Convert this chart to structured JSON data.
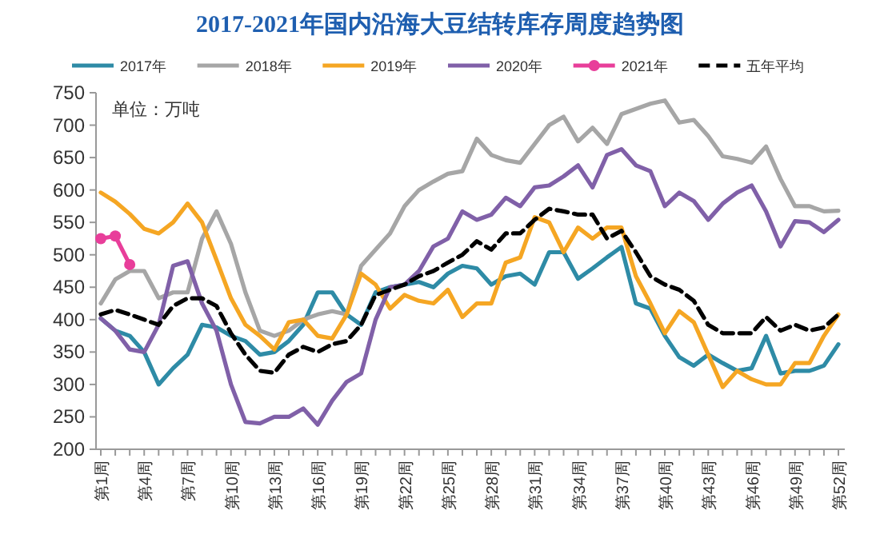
{
  "chart_data": {
    "type": "line",
    "title": "2017-2021年国内沿海大豆结转库存周度趋势图",
    "annotations": [
      "单位：万吨"
    ],
    "categories": [
      "第1周",
      null,
      null,
      "第4周",
      null,
      null,
      "第7周",
      null,
      null,
      "第10周",
      null,
      null,
      "第13周",
      null,
      null,
      "第16周",
      null,
      null,
      "第19周",
      null,
      null,
      "第22周",
      null,
      null,
      "第25周",
      null,
      null,
      "第28周",
      null,
      null,
      "第31周",
      null,
      null,
      "第34周",
      null,
      null,
      "第37周",
      null,
      null,
      "第40周",
      null,
      null,
      "第43周",
      null,
      null,
      "第46周",
      null,
      null,
      "第49周",
      null,
      null,
      "第52周"
    ],
    "ylim": [
      200,
      750
    ],
    "yticks": [
      200,
      250,
      300,
      350,
      400,
      450,
      500,
      550,
      600,
      650,
      700,
      750
    ],
    "grid": false,
    "legend": "top",
    "marker": "none",
    "line_style": "solid",
    "series": [
      {
        "name": "2017年",
        "color": "#2e8ba6",
        "values": [
          402,
          383,
          375,
          350,
          300,
          325,
          346,
          392,
          388,
          375,
          367,
          346,
          350,
          367,
          392,
          442,
          442,
          408,
          392,
          442,
          450,
          454,
          458,
          450,
          471,
          483,
          479,
          454,
          467,
          471,
          454,
          504,
          504,
          463,
          479,
          496,
          512,
          425,
          417,
          375,
          342,
          329,
          346,
          333,
          321,
          325,
          375,
          317,
          321,
          321,
          329,
          362
        ]
      },
      {
        "name": "2018年",
        "color": "#a6a6a6",
        "values": [
          425,
          462,
          475,
          475,
          433,
          442,
          442,
          525,
          567,
          517,
          442,
          383,
          375,
          383,
          400,
          408,
          413,
          408,
          483,
          508,
          533,
          575,
          600,
          613,
          625,
          629,
          679,
          654,
          646,
          642,
          671,
          700,
          713,
          675,
          696,
          671,
          717,
          725,
          733,
          738,
          704,
          708,
          683,
          652,
          648,
          642,
          667,
          617,
          575,
          575,
          567,
          568
        ]
      },
      {
        "name": "2019年",
        "color": "#f5a623",
        "values": [
          596,
          582,
          563,
          540,
          533,
          550,
          579,
          550,
          492,
          433,
          392,
          375,
          354,
          396,
          400,
          375,
          371,
          408,
          471,
          454,
          417,
          438,
          429,
          425,
          446,
          404,
          425,
          425,
          488,
          496,
          558,
          550,
          504,
          542,
          525,
          542,
          542,
          467,
          425,
          379,
          413,
          396,
          346,
          296,
          321,
          308,
          300,
          300,
          333,
          333,
          375,
          408
        ]
      },
      {
        "name": "2020年",
        "color": "#8060a8",
        "values": [
          402,
          383,
          354,
          350,
          392,
          483,
          490,
          425,
          383,
          300,
          242,
          240,
          250,
          250,
          263,
          238,
          275,
          304,
          317,
          400,
          450,
          454,
          475,
          513,
          525,
          567,
          554,
          562,
          588,
          575,
          604,
          607,
          621,
          638,
          604,
          654,
          663,
          638,
          629,
          575,
          596,
          583,
          554,
          579,
          596,
          607,
          567,
          513,
          552,
          550,
          535,
          554
        ]
      },
      {
        "name": "2021年",
        "color": "#e83e9a",
        "marker": "circle",
        "values": [
          525,
          529,
          485,
          null,
          null,
          null,
          null,
          null,
          null,
          null,
          null,
          null,
          null,
          null,
          null,
          null,
          null,
          null,
          null,
          null,
          null,
          null,
          null,
          null,
          null,
          null,
          null,
          null,
          null,
          null,
          null,
          null,
          null,
          null,
          null,
          null,
          null,
          null,
          null,
          null,
          null,
          null,
          null,
          null,
          null,
          null,
          null,
          null,
          null,
          null,
          null,
          null
        ]
      },
      {
        "name": "五年平均",
        "color": "#000000",
        "line_style": "dashed",
        "values": [
          408,
          415,
          408,
          400,
          392,
          421,
          433,
          433,
          421,
          379,
          346,
          321,
          318,
          346,
          358,
          350,
          362,
          367,
          392,
          438,
          446,
          454,
          467,
          475,
          488,
          500,
          521,
          508,
          533,
          533,
          554,
          571,
          567,
          562,
          562,
          525,
          537,
          504,
          467,
          454,
          446,
          429,
          392,
          379,
          379,
          379,
          404,
          383,
          392,
          383,
          388,
          408
        ]
      }
    ]
  }
}
